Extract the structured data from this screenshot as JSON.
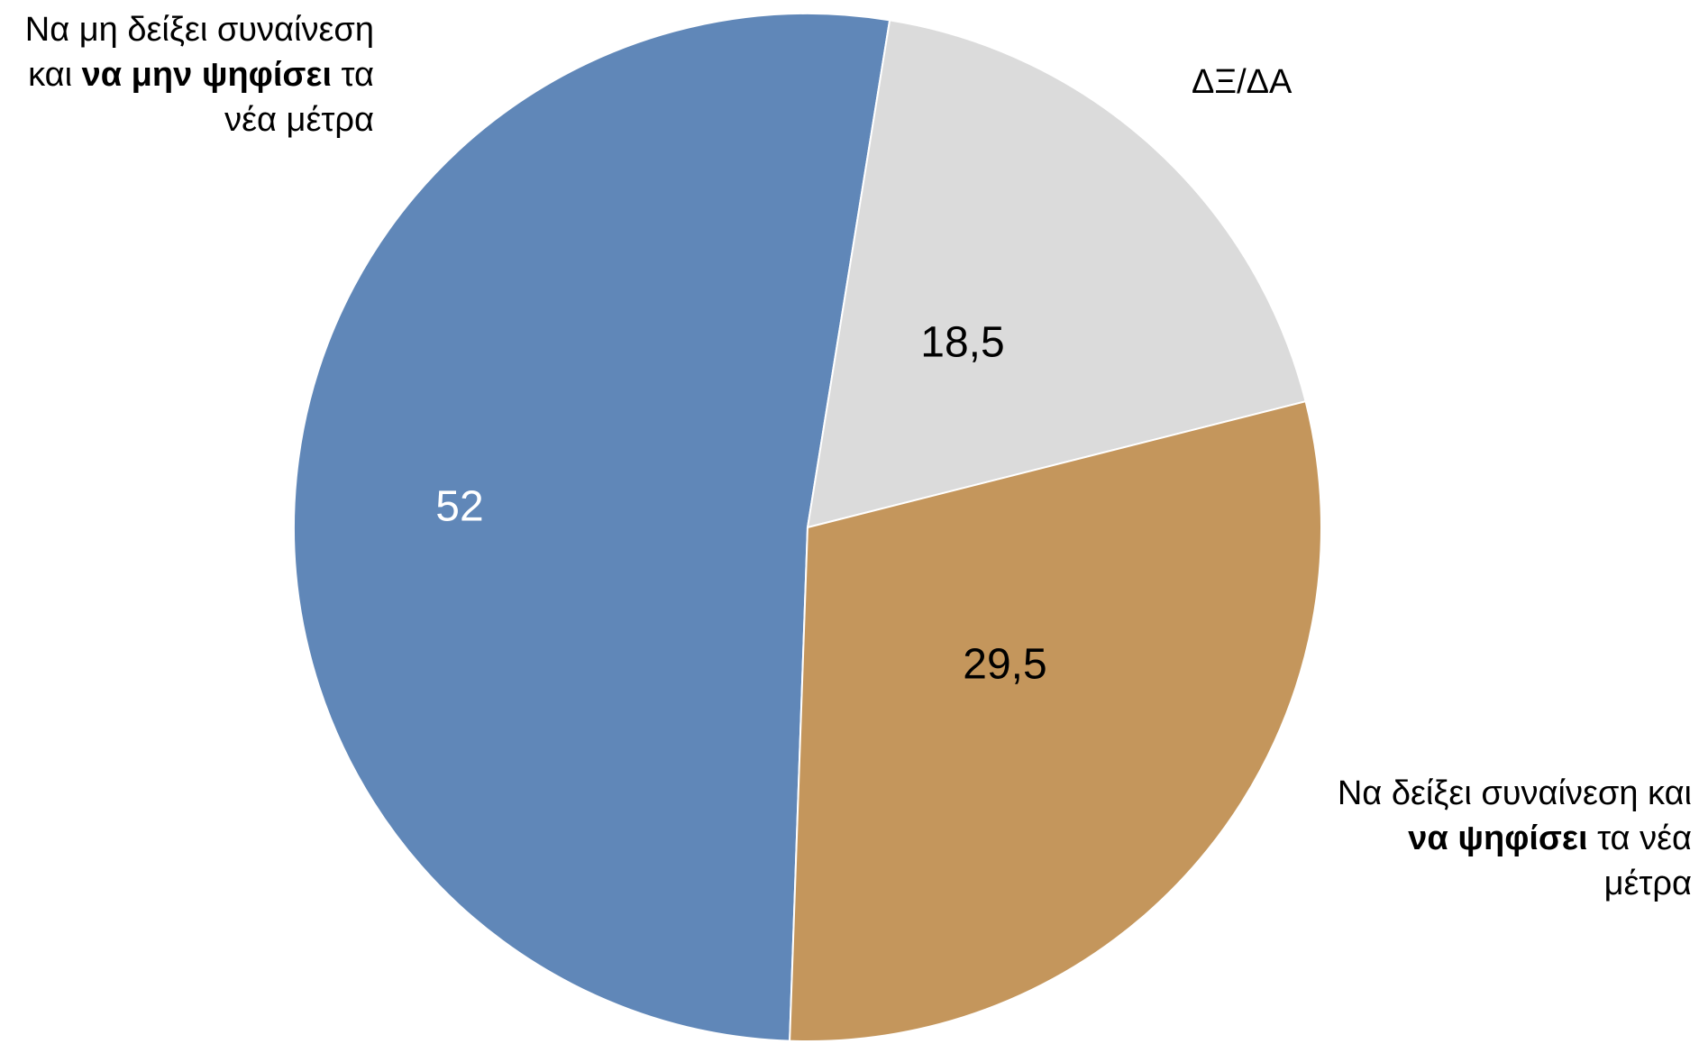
{
  "chart_data": {
    "type": "pie",
    "title": "",
    "slices": [
      {
        "key": "no",
        "label_parts": [
          {
            "text": "Να μη δείξει συναίνεση και ",
            "bold": false
          },
          {
            "text": "να μην ψηφίσει",
            "bold": true
          },
          {
            "text": " τα νέα μέτρα",
            "bold": false
          }
        ],
        "value": 52,
        "value_label": "52",
        "color": "#6087B8",
        "value_color": "#ffffff"
      },
      {
        "key": "dk",
        "label_parts": [
          {
            "text": "ΔΞ/ΔΑ",
            "bold": false
          }
        ],
        "value": 18.5,
        "value_label": "18,5",
        "color": "#DBDBDB",
        "value_color": "#000000"
      },
      {
        "key": "yes",
        "label_parts": [
          {
            "text": "Να δείξει συναίνεση και ",
            "bold": false
          },
          {
            "text": "να ψηφίσει",
            "bold": true
          },
          {
            "text": " τα νέα μέτρα",
            "bold": false
          }
        ],
        "value": 29.5,
        "value_label": "29,5",
        "color": "#C4965C",
        "value_color": "#000000"
      }
    ],
    "legend_placement": "labels-outside"
  }
}
